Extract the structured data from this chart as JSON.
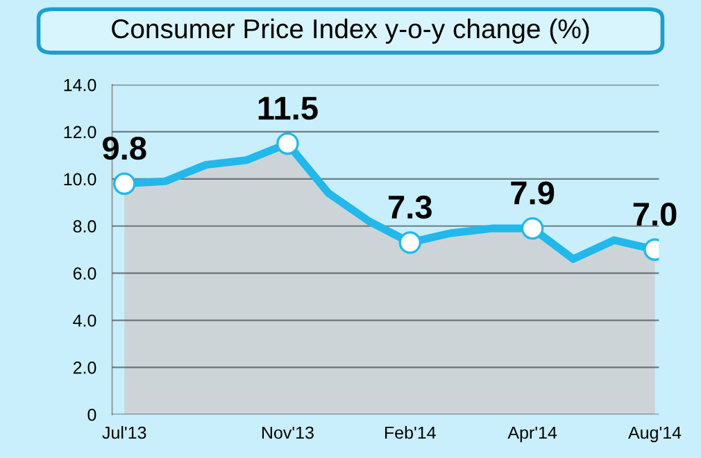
{
  "chart_data": {
    "type": "area",
    "title": "Consumer Price Index y-o-y change (%)",
    "categories": [
      "Jul'13",
      null,
      null,
      null,
      "Nov'13",
      null,
      null,
      "Feb'14",
      null,
      null,
      "Apr'14",
      null,
      null,
      "Aug'14"
    ],
    "series": [
      {
        "color": "#22b8ec",
        "values": [
          9.8,
          9.9,
          10.6,
          10.8,
          11.5,
          9.4,
          8.2,
          7.3,
          7.7,
          7.9,
          7.9,
          6.6,
          7.4,
          7.0
        ],
        "value_labels": [
          "9.8",
          null,
          null,
          null,
          "11.5",
          null,
          null,
          "7.3",
          null,
          null,
          "7.9",
          null,
          null,
          "7.0"
        ]
      }
    ],
    "ylim": [
      0,
      14
    ],
    "yticks": [
      {
        "value": 0,
        "label": "0"
      },
      {
        "value": 2,
        "label": "2.0"
      },
      {
        "value": 4,
        "label": "4.0"
      },
      {
        "value": 6,
        "label": "6.0"
      },
      {
        "value": 8,
        "label": "8.0"
      },
      {
        "value": 10,
        "label": "10.0"
      },
      {
        "value": 12,
        "label": "12.0"
      },
      {
        "value": 14,
        "label": "14.0"
      }
    ],
    "grid": "y",
    "legend": false
  }
}
